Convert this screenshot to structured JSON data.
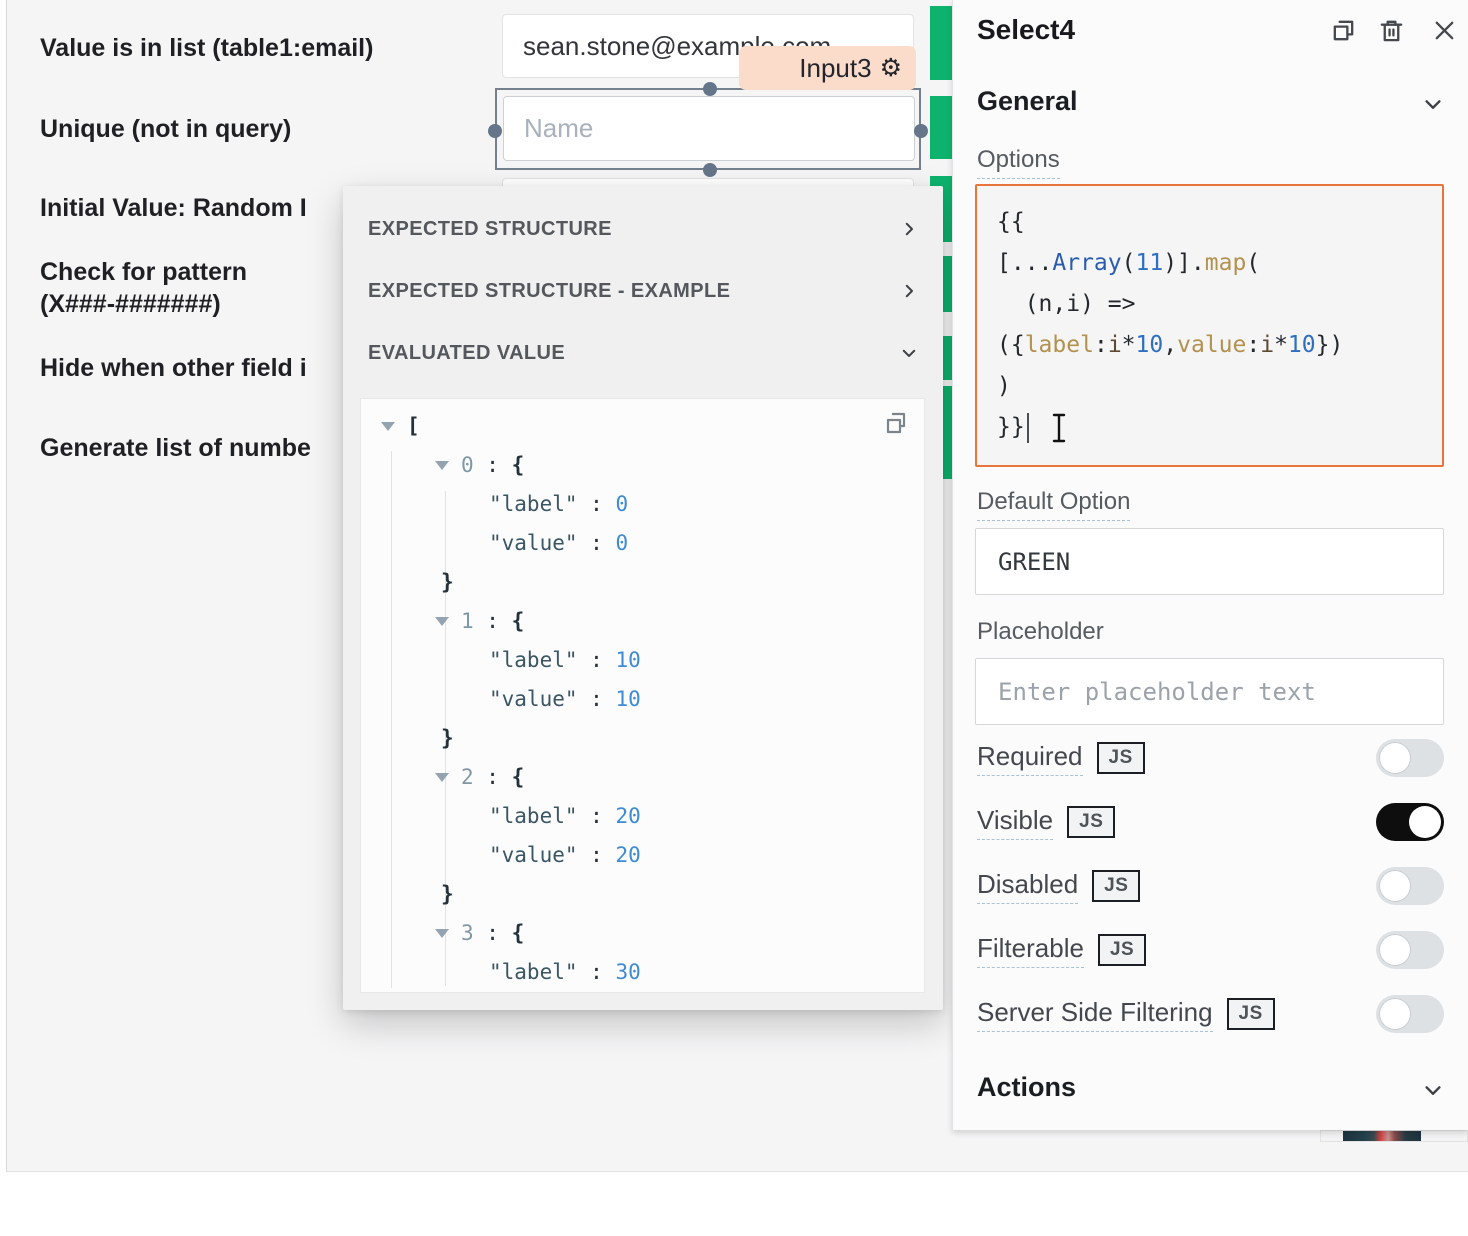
{
  "canvas": {
    "form_labels": [
      "Value is in list (table1:email)",
      "Unique (not in query)",
      "Initial Value: Random I",
      "Check for pattern\n(X###-#######)",
      "Hide when other field i",
      "Generate list of numbe"
    ],
    "email_input": {
      "value": "sean.stone@example.com"
    },
    "component_tag": {
      "label": "Input3",
      "icon": "gear-icon",
      "background": "#fbdccb"
    },
    "name_input": {
      "placeholder": "Name"
    },
    "indicator_color": "#0db36d"
  },
  "popup": {
    "sections": [
      {
        "label": "EXPECTED STRUCTURE",
        "chevron": "right"
      },
      {
        "label": "EXPECTED STRUCTURE - EXAMPLE",
        "chevron": "right"
      },
      {
        "label": "EVALUATED VALUE",
        "chevron": "down"
      }
    ],
    "copy_icon": "copy-icon",
    "tree_rows": [
      {
        "ind": 20,
        "caret": true,
        "segs": [
          [
            "tb",
            "["
          ]
        ]
      },
      {
        "ind": 74,
        "caret": true,
        "segs": [
          [
            "ti",
            "0"
          ],
          [
            "tc",
            " : "
          ],
          [
            "tb",
            "{"
          ]
        ]
      },
      {
        "ind": 128,
        "caret": false,
        "segs": [
          [
            "tk",
            "\"label\""
          ],
          [
            "tc",
            " : "
          ],
          [
            "tn",
            "0"
          ]
        ]
      },
      {
        "ind": 128,
        "caret": false,
        "segs": [
          [
            "tk",
            "\"value\""
          ],
          [
            "tc",
            " : "
          ],
          [
            "tn",
            "0"
          ]
        ]
      },
      {
        "ind": 80,
        "caret": false,
        "segs": [
          [
            "tb",
            "}"
          ]
        ]
      },
      {
        "ind": 74,
        "caret": true,
        "segs": [
          [
            "ti",
            "1"
          ],
          [
            "tc",
            " : "
          ],
          [
            "tb",
            "{"
          ]
        ]
      },
      {
        "ind": 128,
        "caret": false,
        "segs": [
          [
            "tk",
            "\"label\""
          ],
          [
            "tc",
            " : "
          ],
          [
            "tn",
            "10"
          ]
        ]
      },
      {
        "ind": 128,
        "caret": false,
        "segs": [
          [
            "tk",
            "\"value\""
          ],
          [
            "tc",
            " : "
          ],
          [
            "tn",
            "10"
          ]
        ]
      },
      {
        "ind": 80,
        "caret": false,
        "segs": [
          [
            "tb",
            "}"
          ]
        ]
      },
      {
        "ind": 74,
        "caret": true,
        "segs": [
          [
            "ti",
            "2"
          ],
          [
            "tc",
            " : "
          ],
          [
            "tb",
            "{"
          ]
        ]
      },
      {
        "ind": 128,
        "caret": false,
        "segs": [
          [
            "tk",
            "\"label\""
          ],
          [
            "tc",
            " : "
          ],
          [
            "tn",
            "20"
          ]
        ]
      },
      {
        "ind": 128,
        "caret": false,
        "segs": [
          [
            "tk",
            "\"value\""
          ],
          [
            "tc",
            " : "
          ],
          [
            "tn",
            "20"
          ]
        ]
      },
      {
        "ind": 80,
        "caret": false,
        "segs": [
          [
            "tb",
            "}"
          ]
        ]
      },
      {
        "ind": 74,
        "caret": true,
        "segs": [
          [
            "ti",
            "3"
          ],
          [
            "tc",
            " : "
          ],
          [
            "tb",
            "{"
          ]
        ]
      },
      {
        "ind": 128,
        "caret": false,
        "segs": [
          [
            "tk",
            "\"label\""
          ],
          [
            "tc",
            " : "
          ],
          [
            "tn",
            "30"
          ]
        ]
      }
    ]
  },
  "inspector": {
    "title": "Select4",
    "header_icons": [
      "copy-icon",
      "trash-icon",
      "close-icon"
    ],
    "section_general": "General",
    "options_label": "Options",
    "accent_orange": "#e8763a",
    "code_lines": [
      [
        [
          "cp",
          "{{"
        ]
      ],
      [
        [
          "cp",
          "[..."
        ],
        [
          "ccls",
          "Array"
        ],
        [
          "cp",
          "("
        ],
        [
          "cnum",
          "11"
        ],
        [
          "cp",
          ")]."
        ],
        [
          "cfn",
          "map"
        ],
        [
          "cp",
          "("
        ]
      ],
      [
        [
          "cp",
          "  (n,i) =>"
        ]
      ],
      [
        [
          "cp",
          "({"
        ],
        [
          "cfn",
          "label"
        ],
        [
          "cp",
          ":"
        ],
        [
          "cvar",
          "i"
        ],
        [
          "cp",
          "*"
        ],
        [
          "cnum",
          "10"
        ],
        [
          "cp",
          ","
        ],
        [
          "cfn",
          "value"
        ],
        [
          "cp",
          ":"
        ],
        [
          "cvar",
          "i"
        ],
        [
          "cp",
          "*"
        ],
        [
          "cnum",
          "10"
        ],
        [
          "cp",
          "})"
        ]
      ],
      [
        [
          "cp",
          ")"
        ]
      ],
      [
        [
          "cp",
          "}}"
        ],
        [
          "cursor",
          ""
        ],
        [
          "ibeam",
          ""
        ]
      ]
    ],
    "default_option_label": "Default Option",
    "default_option_value": "GREEN",
    "placeholder_label": "Placeholder",
    "placeholder_placeholder": "Enter placeholder text",
    "js_badge_label": "JS",
    "toggles": [
      {
        "label": "Required",
        "on": false
      },
      {
        "label": "Visible",
        "on": true
      },
      {
        "label": "Disabled",
        "on": false
      },
      {
        "label": "Filterable",
        "on": false
      },
      {
        "label": "Server Side Filtering",
        "on": false
      }
    ],
    "section_actions": "Actions"
  }
}
